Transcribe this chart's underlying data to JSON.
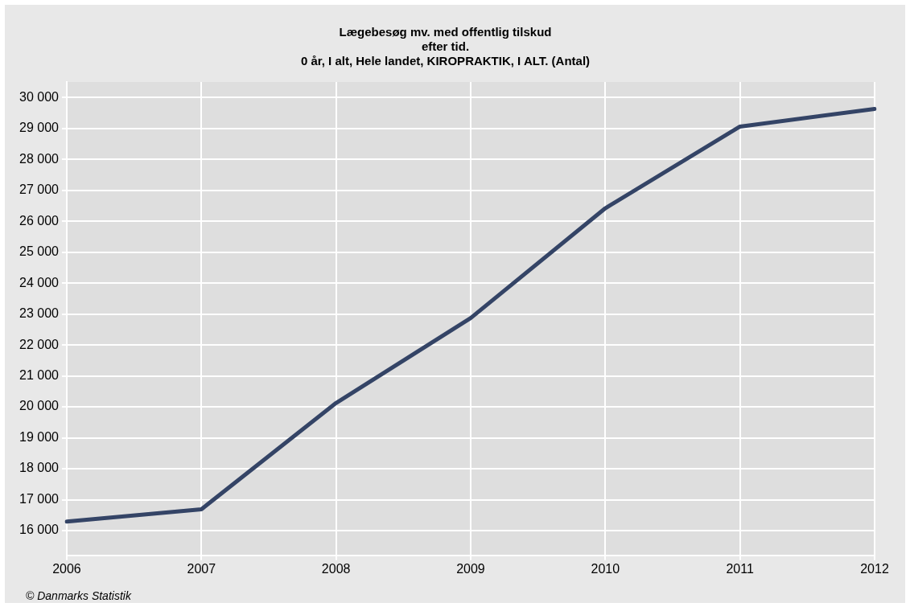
{
  "chart_data": {
    "type": "line",
    "title": [
      "Lægebesøg mv. med offentlig tilskud",
      "efter tid.",
      "0 år, I alt, Hele landet, KIROPRAKTIK, I ALT. (Antal)"
    ],
    "categories": [
      "2006",
      "2007",
      "2008",
      "2009",
      "2010",
      "2011",
      "2012"
    ],
    "series": [
      {
        "color": "#344466",
        "values": [
          16290,
          16690,
          20125,
          22870,
          26420,
          29060,
          29630
        ]
      }
    ],
    "ylim": [
      15200,
      30500
    ],
    "yticks": [
      {
        "value": 16000,
        "label": "16 000"
      },
      {
        "value": 17000,
        "label": "17 000"
      },
      {
        "value": 18000,
        "label": "18 000"
      },
      {
        "value": 19000,
        "label": "19 000"
      },
      {
        "value": 20000,
        "label": "20 000"
      },
      {
        "value": 21000,
        "label": "21 000"
      },
      {
        "value": 22000,
        "label": "22 000"
      },
      {
        "value": 23000,
        "label": "23 000"
      },
      {
        "value": 24000,
        "label": "24 000"
      },
      {
        "value": 25000,
        "label": "25 000"
      },
      {
        "value": 26000,
        "label": "26 000"
      },
      {
        "value": 27000,
        "label": "27 000"
      },
      {
        "value": 28000,
        "label": "28 000"
      },
      {
        "value": 29000,
        "label": "29 000"
      },
      {
        "value": 30000,
        "label": "30 000"
      }
    ],
    "grid": true,
    "legend": false,
    "marker": "none",
    "line_style": "solid",
    "annotations": [
      "© Danmarks Statistik"
    ]
  }
}
